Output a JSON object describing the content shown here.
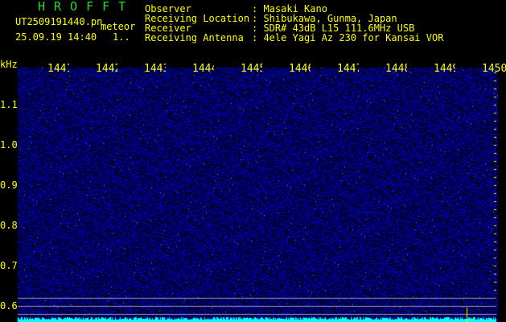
{
  "header": {
    "title": "HROFFT",
    "filename": "UT2509191440.pn",
    "mode": "meteor",
    "datetime": "25.09.19 14:40",
    "count": "1..",
    "fields": [
      {
        "label": "Observer",
        "value": ": Masaki Kano"
      },
      {
        "label": "Receiving Location",
        "value": ": Shibukawa, Gunma, Japan"
      },
      {
        "label": "Receiver",
        "value": ": SDR# 43dB L15 111.6MHz USB"
      },
      {
        "label": "Receiving Antenna",
        "value": ": 4ele Yagi Az 230 for Kansai VOR"
      }
    ]
  },
  "spectrogram": {
    "y_unit": "kHz",
    "time_ticks": [
      "1441",
      "1442",
      "1443",
      "1444",
      "1445",
      "1446",
      "1447",
      "1448",
      "1449",
      "1450"
    ],
    "freq_ticks": [
      "1.1",
      "1.0",
      "0.9",
      "0.8",
      "0.7",
      "0.6"
    ],
    "colors": {
      "background": "#000010",
      "noise": "#2020c0",
      "baseline": "#00ffff",
      "marker": "#ffff00",
      "guide": "#a0a0a0"
    }
  }
}
